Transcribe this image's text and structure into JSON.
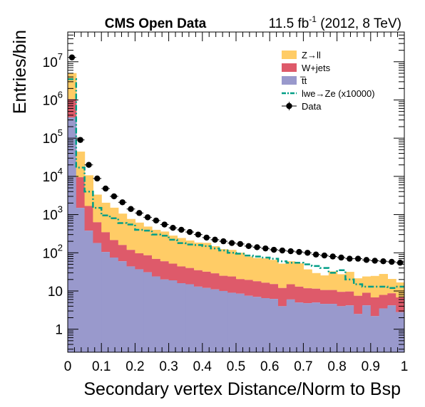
{
  "chart_data": {
    "type": "bar",
    "stacked": true,
    "y_scale": "log",
    "header": {
      "left": "CMS Open Data",
      "right_prefix": "11.5 fb",
      "right_sup": "-1",
      "right_suffix": " (2012, 8 TeV)"
    },
    "xlabel": "Secondary vertex Distance/Norm to Bsp",
    "ylabel": "Entries/bin",
    "xlim": [
      0,
      1
    ],
    "ylim": [
      0.25,
      60000000
    ],
    "bin_width": 0.025,
    "x_ticks": [
      0,
      0.1,
      0.2,
      0.3,
      0.4,
      0.5,
      0.6,
      0.7,
      0.8,
      0.9,
      1
    ],
    "x_tick_labels": [
      "0",
      "0.1",
      "0.2",
      "0.3",
      "0.4",
      "0.5",
      "0.6",
      "0.7",
      "0.8",
      "0.9",
      "1"
    ],
    "y_ticks": [
      {
        "value": 1,
        "base": "1",
        "exp": ""
      },
      {
        "value": 10,
        "base": "10",
        "exp": ""
      },
      {
        "value": 100,
        "base": "10",
        "exp": "2"
      },
      {
        "value": 1000,
        "base": "10",
        "exp": "3"
      },
      {
        "value": 10000,
        "base": "10",
        "exp": "4"
      },
      {
        "value": 100000,
        "base": "10",
        "exp": "5"
      },
      {
        "value": 1000000,
        "base": "10",
        "exp": "6"
      },
      {
        "value": 10000000,
        "base": "10",
        "exp": "7"
      }
    ],
    "legend_position": "top-right",
    "series": [
      {
        "name": "Z→ll",
        "kind": "stack",
        "color": "#ffcc66",
        "values": [
          4000000,
          35000,
          9000,
          2700,
          1700,
          1300,
          900,
          650,
          520,
          400,
          330,
          300,
          230,
          200,
          170,
          150,
          150,
          120,
          100,
          95,
          80,
          60,
          55,
          55,
          50,
          40,
          45,
          40,
          25,
          18,
          15,
          22,
          18,
          22,
          14,
          15,
          18,
          20,
          12,
          10
        ]
      },
      {
        "name": "W+jets",
        "kind": "stack",
        "color": "#de5a6a",
        "values": [
          700000,
          8000,
          1300,
          450,
          240,
          140,
          100,
          75,
          60,
          55,
          45,
          40,
          33,
          28,
          25,
          22,
          20,
          18,
          15,
          15,
          12,
          12,
          11,
          10,
          9,
          8,
          9,
          8,
          7,
          6.5,
          6,
          6,
          5.5,
          5.5,
          5,
          4.8,
          4.6,
          4.4,
          4.5,
          4
        ]
      },
      {
        "name": "t̅t",
        "kind": "stack",
        "color": "#9999cc",
        "values": [
          350000,
          1500,
          380,
          180,
          105,
          75,
          60,
          44,
          37,
          31,
          24,
          20,
          19,
          16,
          15,
          13,
          12,
          11,
          10,
          9,
          8.5,
          7.5,
          7,
          6.5,
          6.2,
          4,
          6,
          5,
          4.8,
          5,
          4.6,
          4.6,
          4,
          4.2,
          2.5,
          4.2,
          2.2,
          3.5,
          4.2,
          2.8
        ]
      },
      {
        "name": "lwe→Ze (x10000)",
        "kind": "signal",
        "color": "#009e86",
        "values": [
          3500000,
          17000,
          4000,
          1500,
          950,
          800,
          600,
          550,
          400,
          380,
          300,
          280,
          220,
          180,
          165,
          160,
          150,
          130,
          115,
          100,
          95,
          85,
          80,
          75,
          70,
          60,
          55,
          55,
          50,
          45,
          40,
          30,
          35,
          20,
          15,
          13,
          13,
          13,
          12,
          13
        ]
      },
      {
        "name": "Data",
        "kind": "data",
        "color": "#000000",
        "values": [
          13000000,
          90000,
          20000,
          8800,
          4800,
          3000,
          2100,
          1400,
          1100,
          850,
          700,
          550,
          450,
          400,
          350,
          300,
          250,
          220,
          200,
          180,
          170,
          150,
          140,
          130,
          120,
          115,
          110,
          105,
          100,
          90,
          85,
          80,
          75,
          70,
          70,
          65,
          62,
          60,
          58,
          55
        ]
      }
    ]
  }
}
